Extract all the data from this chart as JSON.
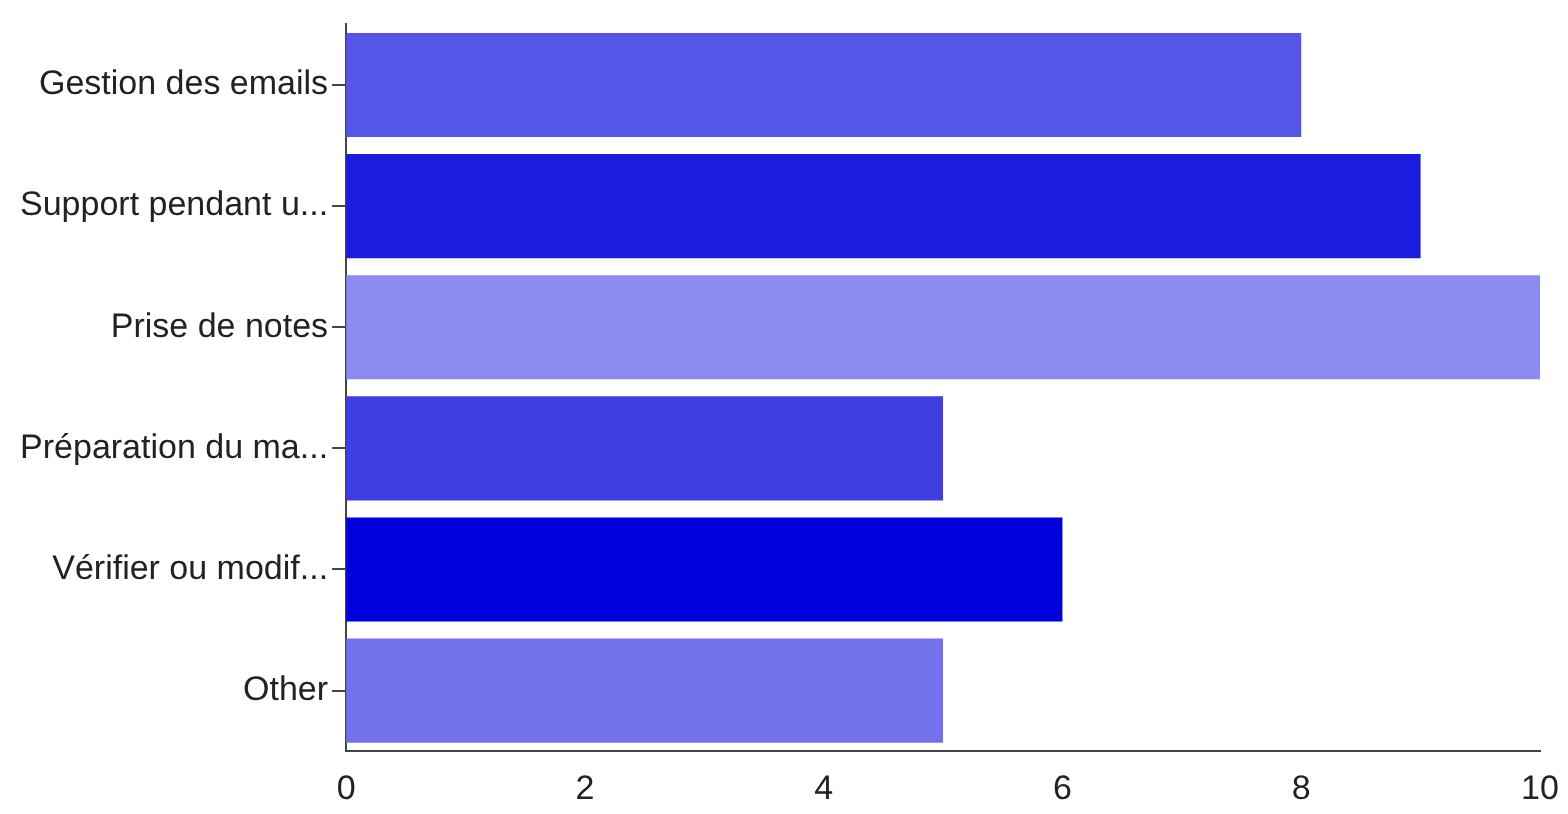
{
  "chart_data": {
    "type": "bar",
    "orientation": "horizontal",
    "categories": [
      "Gestion des emails",
      "Support pendant u...",
      "Prise de notes",
      "Préparation du ma...",
      "Vérifier ou modif...",
      "Other"
    ],
    "values": [
      8,
      9,
      10,
      5,
      6,
      5
    ],
    "colors": [
      "#5555e8",
      "#1c1ce0",
      "#8a8af0",
      "#3e3ee2",
      "#0000dd",
      "#7272ec"
    ],
    "xlim": [
      0,
      10
    ],
    "xticks": [
      0,
      2,
      4,
      6,
      8,
      10
    ],
    "grid": false,
    "legend": false
  }
}
